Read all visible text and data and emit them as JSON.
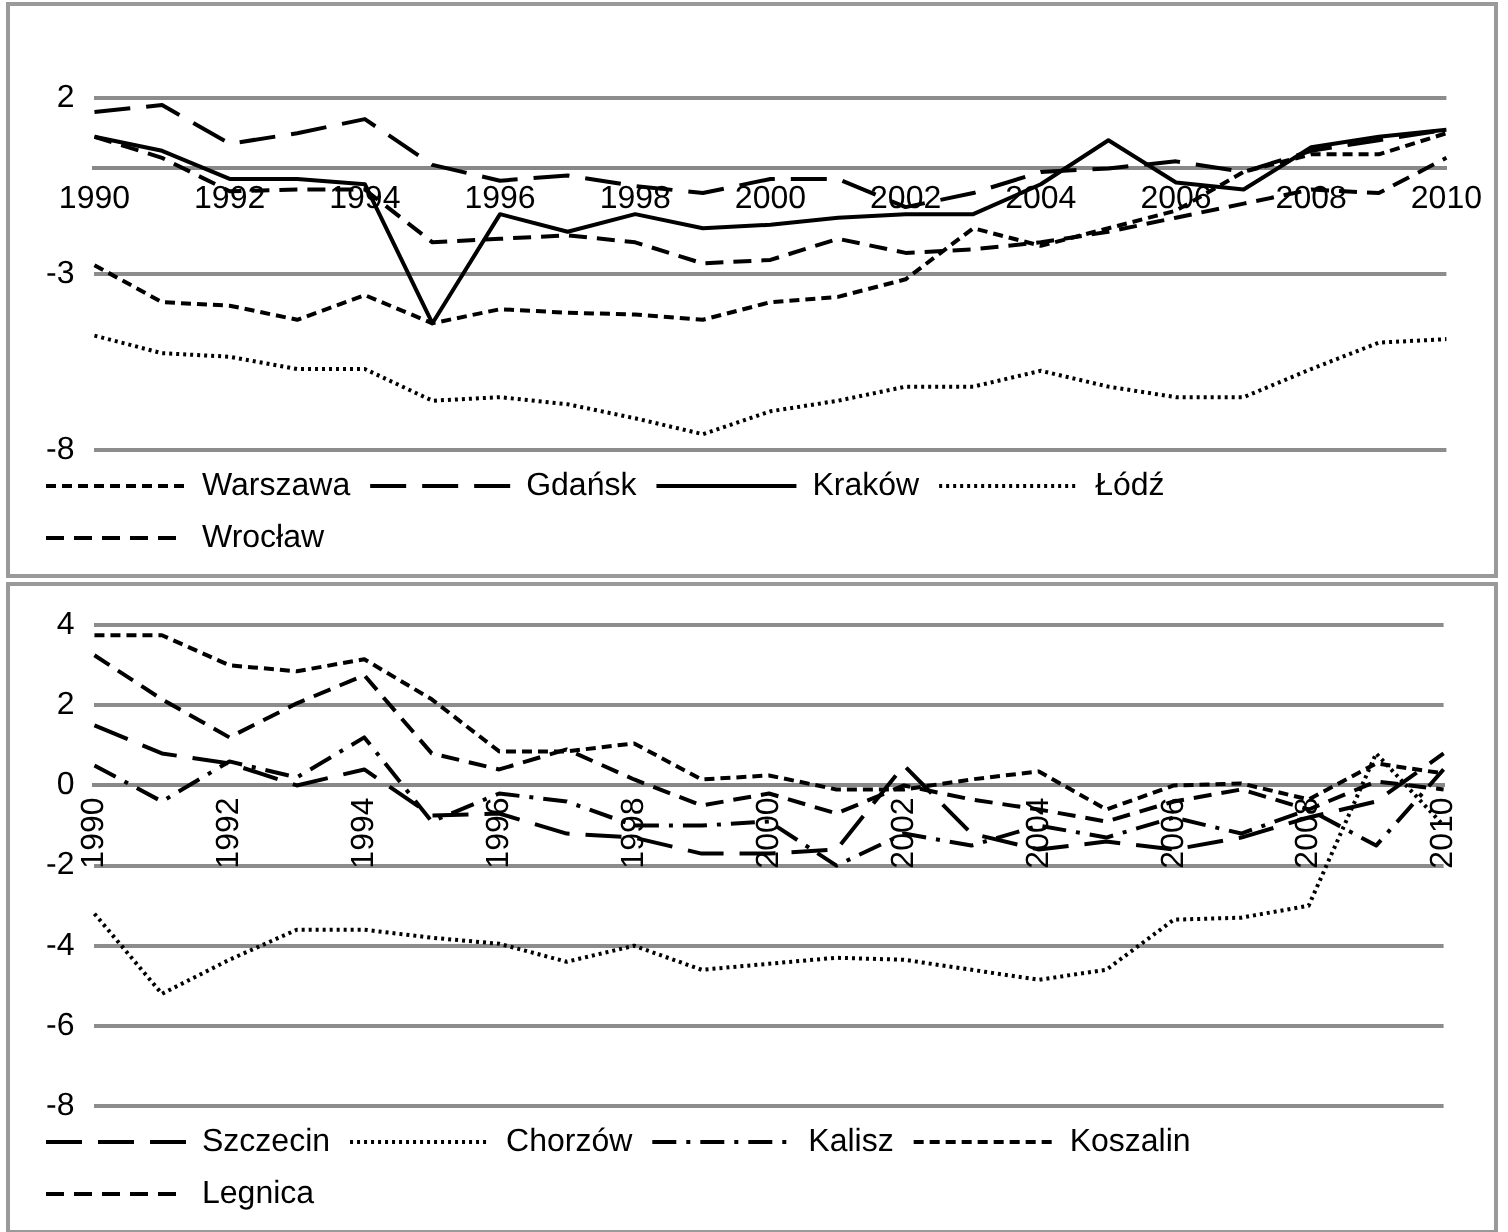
{
  "chart_data": [
    {
      "type": "line",
      "categories": [
        "1990",
        null,
        "1992",
        null,
        "1994",
        null,
        "1996",
        null,
        "1998",
        null,
        "2000",
        null,
        "2002",
        null,
        "2004",
        null,
        "2006",
        null,
        "2008",
        null,
        "2010"
      ],
      "ylim": [
        -8,
        2
      ],
      "yticks": [
        2,
        -3,
        -8
      ],
      "grid": "y",
      "legend": "bottom",
      "marker": "none",
      "series": [
        {
          "name": "Warszawa",
          "color": "#000000",
          "line_style": "shortdash",
          "values": [
            -2.75,
            -3.8,
            -3.9,
            -4.3,
            -3.6,
            -4.4,
            -4.0,
            -4.1,
            -4.15,
            -4.3,
            -3.8,
            -3.65,
            -3.15,
            -1.7,
            -2.2,
            -1.7,
            -1.2,
            -0.1,
            0.4,
            0.4,
            1.0
          ]
        },
        {
          "name": "Gdańsk",
          "color": "#000000",
          "line_style": "longdash",
          "values": [
            1.6,
            1.8,
            0.7,
            1.0,
            1.4,
            0.1,
            -0.35,
            -0.2,
            -0.5,
            -0.7,
            -0.3,
            -0.3,
            -1.1,
            -0.7,
            -0.1,
            0.0,
            0.2,
            -0.1,
            0.5,
            0.8,
            1.1
          ]
        },
        {
          "name": "Kraków",
          "color": "#000000",
          "line_style": "solid",
          "values": [
            0.9,
            0.5,
            -0.3,
            -0.3,
            -0.45,
            -4.4,
            -1.3,
            -1.8,
            -1.3,
            -1.7,
            -1.6,
            -1.4,
            -1.3,
            -1.3,
            -0.45,
            0.8,
            -0.4,
            -0.6,
            0.6,
            0.9,
            1.1
          ]
        },
        {
          "name": "Łódź",
          "color": "#000000",
          "line_style": "dotted",
          "values": [
            -4.75,
            -5.25,
            -5.35,
            -5.7,
            -5.7,
            -6.6,
            -6.5,
            -6.7,
            -7.1,
            -7.55,
            -6.9,
            -6.6,
            -6.2,
            -6.2,
            -5.75,
            -6.2,
            -6.5,
            -6.5,
            -5.7,
            -4.95,
            -4.85
          ]
        },
        {
          "name": "Wrocław",
          "color": "#000000",
          "line_style": "dashed",
          "values": [
            0.9,
            0.3,
            -0.65,
            -0.6,
            -0.6,
            -2.1,
            -2.0,
            -1.9,
            -2.1,
            -2.7,
            -2.6,
            -2.0,
            -2.4,
            -2.3,
            -2.1,
            -1.8,
            -1.4,
            -1.0,
            -0.6,
            -0.7,
            0.3
          ]
        }
      ]
    },
    {
      "type": "line",
      "categories": [
        "1990",
        null,
        "1992",
        null,
        "1994",
        null,
        "1996",
        null,
        "1998",
        null,
        "2000",
        null,
        "2002",
        null,
        "2004",
        null,
        "2006",
        null,
        "2008",
        null,
        "2010"
      ],
      "ylim": [
        -8,
        4
      ],
      "yticks": [
        4,
        2,
        0,
        -2,
        -4,
        -6,
        -8
      ],
      "grid": "y",
      "legend": "bottom",
      "marker": "none",
      "series": [
        {
          "name": "Szczecin",
          "color": "#000000",
          "line_style": "longdash",
          "values": [
            1.5,
            0.8,
            0.55,
            0.0,
            0.4,
            -0.75,
            -0.7,
            -1.2,
            -1.3,
            -1.7,
            -1.7,
            -1.6,
            0.5,
            -1.2,
            -1.6,
            -1.4,
            -1.6,
            -1.3,
            -0.8,
            -0.4,
            0.8
          ]
        },
        {
          "name": "Chorzów",
          "color": "#000000",
          "line_style": "dotted",
          "values": [
            -3.2,
            -5.2,
            -4.35,
            -3.6,
            -3.6,
            -3.8,
            -3.95,
            -4.4,
            -4.0,
            -4.6,
            -4.45,
            -4.3,
            -4.35,
            -4.6,
            -4.85,
            -4.6,
            -3.35,
            -3.3,
            -3.0,
            0.8,
            -1.0
          ]
        },
        {
          "name": "Kalisz",
          "color": "#000000",
          "line_style": "dashdot",
          "values": [
            0.5,
            -0.4,
            0.6,
            0.2,
            1.2,
            -0.9,
            -0.2,
            -0.4,
            -1.0,
            -1.0,
            -0.9,
            -2.0,
            -1.2,
            -1.5,
            -1.0,
            -1.3,
            -0.8,
            -1.2,
            -0.6,
            -1.5,
            0.4
          ]
        },
        {
          "name": "Koszalin",
          "color": "#000000",
          "line_style": "shortdash",
          "values": [
            3.75,
            3.75,
            3.0,
            2.85,
            3.15,
            2.15,
            0.85,
            0.85,
            1.05,
            0.15,
            0.25,
            -0.1,
            -0.1,
            0.15,
            0.35,
            -0.6,
            0.0,
            0.05,
            -0.35,
            0.55,
            0.3
          ]
        },
        {
          "name": "Legnica",
          "color": "#000000",
          "line_style": "dashed",
          "values": [
            3.25,
            2.15,
            1.2,
            2.05,
            2.75,
            0.8,
            0.4,
            0.9,
            0.15,
            -0.5,
            -0.2,
            -0.7,
            0.0,
            -0.35,
            -0.6,
            -0.9,
            -0.4,
            -0.1,
            -0.6,
            0.1,
            -0.1
          ]
        }
      ]
    }
  ]
}
